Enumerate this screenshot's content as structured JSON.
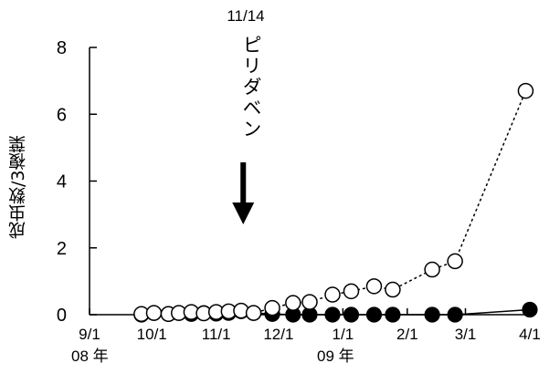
{
  "chart_data": {
    "type": "scatter",
    "title": "",
    "xlabel": "",
    "ylabel": "成虫数/3複葉",
    "ylim": [
      0,
      8
    ],
    "yticks": [
      "0",
      "2",
      "4",
      "6",
      "8"
    ],
    "x_tick_labels": [
      "9/1",
      "10/1",
      "11/1",
      "12/1",
      "1/1",
      "2/1",
      "3/1",
      "4/1"
    ],
    "x_tick_days": [
      0,
      30,
      61,
      91,
      122,
      153,
      181,
      212
    ],
    "year_labels": [
      "08 年",
      "09 年"
    ],
    "annotation": {
      "date": "11/14",
      "text": "ピリダベン",
      "arrow_day": 74
    },
    "grid": false,
    "legend": "none",
    "series": [
      {
        "marker": "open-circle",
        "line": "dotted",
        "x_days": [
          25,
          31,
          38,
          43,
          49,
          55,
          61,
          67,
          73,
          79,
          88,
          98,
          106,
          117,
          126,
          137,
          146,
          165,
          176
        ],
        "values": [
          0.02,
          0.05,
          0.02,
          0.05,
          0.08,
          0.04,
          0.08,
          0.1,
          0.12,
          0.05,
          0.2,
          0.35,
          0.38,
          0.6,
          0.7,
          0.85,
          0.75,
          1.35,
          1.6
        ]
      },
      {
        "marker": "filled-circle",
        "line": "solid",
        "x_days": [
          25,
          31,
          38,
          43,
          49,
          55,
          61,
          67,
          73,
          79,
          88,
          98,
          106,
          117,
          126,
          137,
          146,
          165,
          176,
          212
        ],
        "values": [
          0,
          0.05,
          0.02,
          0.05,
          0.02,
          0.05,
          0.03,
          0.05,
          0.1,
          0.05,
          0.02,
          0,
          0,
          0,
          0,
          0,
          0,
          0,
          0,
          0.15
        ]
      }
    ],
    "open_series_end": {
      "x_day": 210,
      "value": 6.7
    }
  }
}
